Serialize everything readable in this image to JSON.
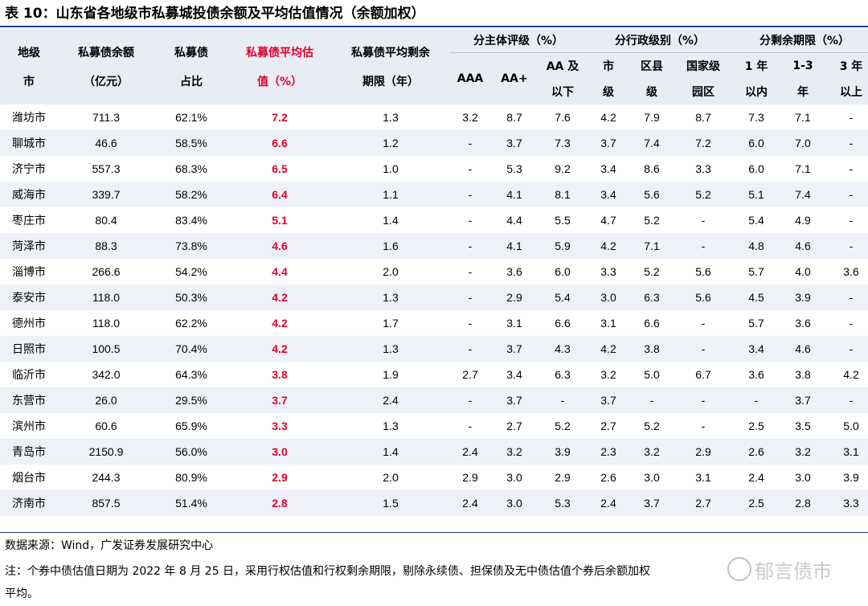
{
  "title": "表 10：山东省各地级市私募城投债余额及平均估值情况（余额加权）",
  "header": {
    "city": [
      "地级",
      "市"
    ],
    "balance": [
      "私募债余额",
      "（亿元）"
    ],
    "share": [
      "私募债",
      "占比"
    ],
    "valuation": [
      "私募债平均估",
      "值（%）"
    ],
    "term": [
      "私募债平均剩余",
      "期限（年）"
    ],
    "group_rating": "分主体评级（%）",
    "group_admin": "分行政级别（%）",
    "group_remaining": "分剩余期限（%）",
    "rating_cols": [
      "AAA",
      "AA+",
      "AA 及",
      "以下"
    ],
    "admin_cols": [
      "市",
      "级",
      "区县",
      "级",
      "国家级",
      "园区"
    ],
    "remaining_cols": [
      "1 年",
      "以内",
      "1-3",
      "年",
      "3 年",
      "以上"
    ]
  },
  "rows": [
    [
      "潍坊市",
      "711.3",
      "62.1%",
      "7.2",
      "1.3",
      "3.2",
      "8.7",
      "7.6",
      "4.2",
      "7.9",
      "8.7",
      "7.3",
      "7.1",
      "-"
    ],
    [
      "聊城市",
      "46.6",
      "58.5%",
      "6.6",
      "1.2",
      "-",
      "3.7",
      "7.3",
      "3.7",
      "7.4",
      "7.2",
      "6.0",
      "7.0",
      "-"
    ],
    [
      "济宁市",
      "557.3",
      "68.3%",
      "6.5",
      "1.0",
      "-",
      "5.3",
      "9.2",
      "3.4",
      "8.6",
      "3.3",
      "6.0",
      "7.1",
      "-"
    ],
    [
      "威海市",
      "339.7",
      "58.2%",
      "6.4",
      "1.1",
      "-",
      "4.1",
      "8.1",
      "3.4",
      "5.6",
      "5.2",
      "5.1",
      "7.4",
      "-"
    ],
    [
      "枣庄市",
      "80.4",
      "83.4%",
      "5.1",
      "1.4",
      "-",
      "4.4",
      "5.5",
      "4.7",
      "5.2",
      "-",
      "5.4",
      "4.9",
      "-"
    ],
    [
      "菏泽市",
      "88.3",
      "73.8%",
      "4.6",
      "1.6",
      "-",
      "4.1",
      "5.9",
      "4.2",
      "7.1",
      "-",
      "4.8",
      "4.6",
      "-"
    ],
    [
      "淄博市",
      "266.6",
      "54.2%",
      "4.4",
      "2.0",
      "-",
      "3.6",
      "6.0",
      "3.3",
      "5.2",
      "5.6",
      "5.7",
      "4.0",
      "3.6"
    ],
    [
      "泰安市",
      "118.0",
      "50.3%",
      "4.2",
      "1.3",
      "-",
      "2.9",
      "5.4",
      "3.0",
      "6.3",
      "5.6",
      "4.5",
      "3.9",
      "-"
    ],
    [
      "德州市",
      "118.0",
      "62.2%",
      "4.2",
      "1.7",
      "-",
      "3.1",
      "6.6",
      "3.1",
      "6.6",
      "-",
      "5.7",
      "3.6",
      "-"
    ],
    [
      "日照市",
      "100.5",
      "70.4%",
      "4.2",
      "1.3",
      "-",
      "3.7",
      "4.3",
      "4.2",
      "3.8",
      "-",
      "3.4",
      "4.6",
      "-"
    ],
    [
      "临沂市",
      "342.0",
      "64.3%",
      "3.8",
      "1.9",
      "2.7",
      "3.4",
      "6.3",
      "3.2",
      "5.0",
      "6.7",
      "3.6",
      "3.8",
      "4.2"
    ],
    [
      "东营市",
      "26.0",
      "29.5%",
      "3.7",
      "2.4",
      "-",
      "3.7",
      "-",
      "3.7",
      "-",
      "-",
      "-",
      "3.7",
      "-"
    ],
    [
      "滨州市",
      "60.6",
      "65.9%",
      "3.3",
      "1.3",
      "-",
      "2.7",
      "5.2",
      "2.7",
      "5.2",
      "-",
      "2.5",
      "3.5",
      "5.0"
    ],
    [
      "青岛市",
      "2150.9",
      "56.0%",
      "3.0",
      "1.4",
      "2.4",
      "3.2",
      "3.9",
      "2.3",
      "3.2",
      "2.9",
      "2.6",
      "3.2",
      "3.1"
    ],
    [
      "烟台市",
      "244.3",
      "80.9%",
      "2.9",
      "2.0",
      "2.9",
      "3.0",
      "2.9",
      "2.6",
      "3.0",
      "3.1",
      "2.4",
      "3.0",
      "3.9"
    ],
    [
      "济南市",
      "857.5",
      "51.4%",
      "2.8",
      "1.5",
      "2.4",
      "3.0",
      "5.3",
      "2.4",
      "3.7",
      "2.7",
      "2.5",
      "2.8",
      "3.3"
    ]
  ],
  "notes": {
    "source": "数据来源：Wind，广发证券发展研究中心",
    "note_line1": "注：个券中债估值日期为 2022 年 8 月 25 日，采用行权估值和行权剩余期限，剔除永续债、担保债及无中债估值个券后余额加权",
    "note_line2": "平均。"
  },
  "watermark": "郁言债市"
}
